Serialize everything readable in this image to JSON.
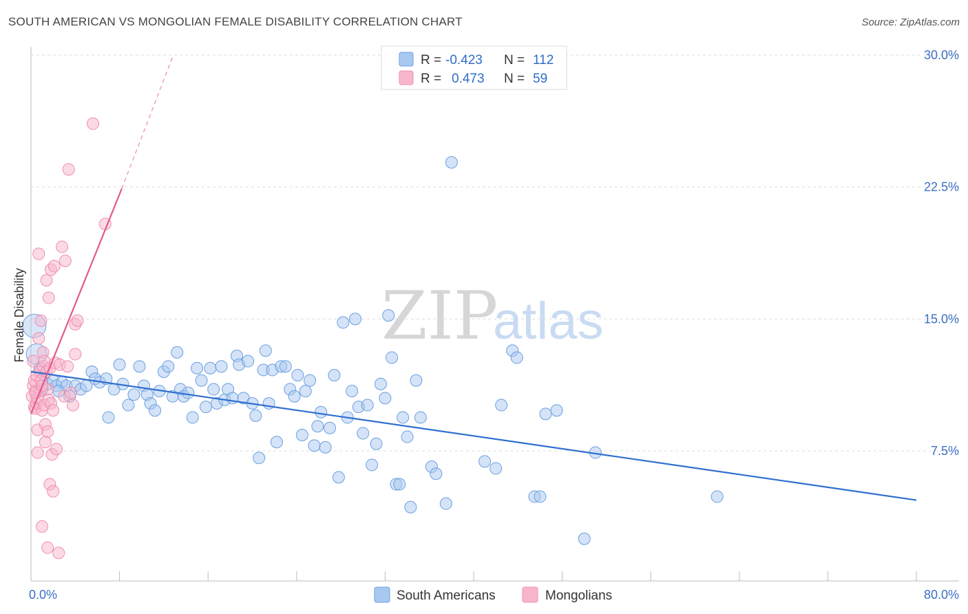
{
  "header": {
    "title": "SOUTH AMERICAN VS MONGOLIAN FEMALE DISABILITY CORRELATION CHART",
    "source": "Source: ZipAtlas.com"
  },
  "watermark": {
    "zip": "ZIP",
    "atlas": "atlas"
  },
  "legend_top": {
    "rows": [
      {
        "r_label": "R =",
        "r_value": "-0.423",
        "n_label": "N =",
        "n_value": "112",
        "color": "#a9c8f0"
      },
      {
        "r_label": "R =",
        "r_value": "0.473",
        "n_label": "N =",
        "n_value": "59",
        "color": "#f7b6cb"
      }
    ]
  },
  "legend_bottom": {
    "items": [
      {
        "label": "South Americans",
        "color": "#a9c8f0"
      },
      {
        "label": "Mongolians",
        "color": "#f7b6cb"
      }
    ]
  },
  "chart_data": {
    "type": "scatter",
    "ylabel": "Female Disability",
    "xlim": [
      0,
      80
    ],
    "ylim": [
      0,
      31.5
    ],
    "x_tick_labels": [
      {
        "value": 0,
        "label": "0.0%"
      },
      {
        "value": 80,
        "label": "80.0%"
      }
    ],
    "y_tick_labels": [
      {
        "value": 7.5,
        "label": "7.5%"
      },
      {
        "value": 15,
        "label": "15.0%"
      },
      {
        "value": 22.5,
        "label": "22.5%"
      },
      {
        "value": 30,
        "label": "30.0%"
      }
    ],
    "x_minor_ticks": [
      0,
      8,
      16,
      24,
      32,
      40,
      48,
      56,
      64,
      72,
      80
    ],
    "grid": "horizontal dashed",
    "series": [
      {
        "name": "South Americans",
        "color": "#6a9fe0",
        "fill": "#a9c8f0",
        "trend": {
          "x": [
            0,
            80
          ],
          "y": [
            12.0,
            4.7
          ],
          "color": "#2f6ed0"
        },
        "points": [
          [
            0.3,
            14.6
          ],
          [
            0.5,
            13.0
          ],
          [
            0.8,
            12.2
          ],
          [
            1.2,
            11.8
          ],
          [
            1.5,
            11.3
          ],
          [
            2.0,
            11.5
          ],
          [
            2.3,
            11.2
          ],
          [
            2.8,
            11.4
          ],
          [
            3.2,
            11.2
          ],
          [
            3.5,
            10.6
          ],
          [
            4.0,
            11.2
          ],
          [
            4.5,
            11.0
          ],
          [
            5.0,
            11.2
          ],
          [
            5.5,
            12.0
          ],
          [
            5.8,
            11.6
          ],
          [
            6.2,
            11.4
          ],
          [
            6.8,
            11.6
          ],
          [
            7.0,
            9.4
          ],
          [
            7.5,
            11.0
          ],
          [
            8.0,
            12.4
          ],
          [
            8.3,
            11.3
          ],
          [
            8.8,
            10.1
          ],
          [
            9.3,
            10.7
          ],
          [
            9.8,
            12.3
          ],
          [
            10.2,
            11.2
          ],
          [
            10.5,
            10.7
          ],
          [
            10.8,
            10.2
          ],
          [
            11.2,
            9.8
          ],
          [
            11.6,
            10.9
          ],
          [
            12.0,
            12.0
          ],
          [
            12.4,
            12.3
          ],
          [
            12.8,
            10.6
          ],
          [
            13.2,
            13.1
          ],
          [
            13.5,
            11.0
          ],
          [
            13.8,
            10.6
          ],
          [
            14.2,
            10.8
          ],
          [
            14.6,
            9.4
          ],
          [
            15.0,
            12.2
          ],
          [
            15.4,
            11.5
          ],
          [
            15.8,
            10.0
          ],
          [
            16.2,
            12.2
          ],
          [
            16.5,
            11.0
          ],
          [
            16.8,
            10.2
          ],
          [
            17.2,
            12.3
          ],
          [
            17.5,
            10.4
          ],
          [
            17.8,
            11.0
          ],
          [
            18.2,
            10.5
          ],
          [
            18.6,
            12.9
          ],
          [
            18.8,
            12.4
          ],
          [
            19.2,
            10.5
          ],
          [
            19.6,
            12.6
          ],
          [
            20.0,
            10.2
          ],
          [
            20.3,
            9.5
          ],
          [
            20.6,
            7.1
          ],
          [
            21.0,
            12.1
          ],
          [
            21.2,
            13.2
          ],
          [
            21.5,
            10.2
          ],
          [
            21.8,
            12.1
          ],
          [
            22.2,
            8.0
          ],
          [
            22.6,
            12.3
          ],
          [
            23.0,
            12.3
          ],
          [
            23.4,
            11.0
          ],
          [
            23.8,
            10.6
          ],
          [
            24.1,
            11.8
          ],
          [
            24.5,
            8.4
          ],
          [
            24.8,
            10.9
          ],
          [
            25.2,
            11.5
          ],
          [
            25.6,
            7.8
          ],
          [
            25.9,
            8.9
          ],
          [
            26.2,
            9.7
          ],
          [
            26.6,
            7.7
          ],
          [
            27.0,
            8.8
          ],
          [
            27.4,
            11.8
          ],
          [
            27.8,
            6.0
          ],
          [
            28.2,
            14.8
          ],
          [
            28.6,
            9.4
          ],
          [
            29.0,
            10.9
          ],
          [
            29.3,
            15.0
          ],
          [
            29.6,
            10.0
          ],
          [
            30.0,
            8.5
          ],
          [
            30.4,
            10.1
          ],
          [
            30.8,
            6.7
          ],
          [
            31.2,
            7.9
          ],
          [
            31.6,
            11.3
          ],
          [
            32.0,
            10.5
          ],
          [
            32.3,
            15.2
          ],
          [
            32.6,
            12.8
          ],
          [
            33.0,
            5.6
          ],
          [
            33.3,
            5.6
          ],
          [
            33.6,
            9.4
          ],
          [
            34.0,
            8.3
          ],
          [
            34.3,
            4.3
          ],
          [
            34.8,
            11.5
          ],
          [
            35.2,
            9.4
          ],
          [
            36.2,
            6.6
          ],
          [
            36.6,
            6.2
          ],
          [
            37.5,
            4.5
          ],
          [
            38.0,
            23.9
          ],
          [
            41.0,
            6.9
          ],
          [
            42.0,
            6.5
          ],
          [
            42.5,
            10.1
          ],
          [
            43.5,
            13.2
          ],
          [
            43.9,
            12.8
          ],
          [
            45.5,
            4.9
          ],
          [
            46.0,
            4.9
          ],
          [
            46.5,
            9.6
          ],
          [
            47.5,
            9.8
          ],
          [
            50.0,
            2.5
          ],
          [
            51.0,
            7.4
          ],
          [
            62.0,
            4.9
          ],
          [
            1.0,
            11.0
          ],
          [
            2.5,
            10.9
          ]
        ]
      },
      {
        "name": "Mongolians",
        "color": "#f08db0",
        "fill": "#f7b6cb",
        "trend": {
          "x": [
            0,
            8.2
          ],
          "y": [
            9.6,
            22.4
          ],
          "color": "#e05a8a"
        },
        "trend_ext": {
          "x": [
            8.2,
            12.8
          ],
          "y": [
            22.4,
            29.9
          ],
          "color": "#e98aab"
        },
        "points": [
          [
            0.1,
            10.6
          ],
          [
            0.2,
            11.2
          ],
          [
            0.2,
            12.6
          ],
          [
            0.3,
            10.0
          ],
          [
            0.3,
            11.5
          ],
          [
            0.4,
            9.9
          ],
          [
            0.4,
            10.9
          ],
          [
            0.5,
            10.2
          ],
          [
            0.5,
            11.8
          ],
          [
            0.6,
            8.7
          ],
          [
            0.6,
            7.4
          ],
          [
            0.6,
            10.5
          ],
          [
            0.7,
            18.7
          ],
          [
            0.7,
            13.9
          ],
          [
            0.8,
            12.0
          ],
          [
            0.8,
            10.9
          ],
          [
            0.9,
            14.9
          ],
          [
            0.9,
            11.5
          ],
          [
            1.0,
            9.8
          ],
          [
            1.0,
            3.2
          ],
          [
            1.1,
            13.1
          ],
          [
            1.1,
            12.3
          ],
          [
            1.2,
            10.1
          ],
          [
            1.2,
            12.6
          ],
          [
            1.3,
            9.0
          ],
          [
            1.3,
            8.0
          ],
          [
            1.4,
            17.2
          ],
          [
            1.4,
            12.0
          ],
          [
            1.5,
            11.0
          ],
          [
            1.5,
            8.6
          ],
          [
            1.5,
            2.0
          ],
          [
            1.6,
            16.2
          ],
          [
            1.6,
            10.4
          ],
          [
            1.7,
            5.6
          ],
          [
            1.7,
            12.2
          ],
          [
            1.8,
            17.8
          ],
          [
            1.8,
            10.2
          ],
          [
            1.9,
            7.3
          ],
          [
            2.0,
            9.8
          ],
          [
            2.0,
            5.2
          ],
          [
            2.1,
            18.0
          ],
          [
            2.2,
            12.5
          ],
          [
            2.3,
            7.6
          ],
          [
            2.5,
            1.7
          ],
          [
            2.6,
            12.4
          ],
          [
            2.8,
            19.1
          ],
          [
            3.0,
            10.6
          ],
          [
            3.1,
            18.3
          ],
          [
            3.3,
            12.3
          ],
          [
            3.4,
            23.5
          ],
          [
            3.6,
            10.8
          ],
          [
            3.8,
            10.1
          ],
          [
            4.0,
            13.0
          ],
          [
            4.0,
            14.7
          ],
          [
            4.2,
            14.9
          ],
          [
            5.6,
            26.1
          ],
          [
            6.7,
            20.4
          ],
          [
            0.4,
            10.8
          ],
          [
            1.0,
            11.2
          ]
        ]
      }
    ]
  }
}
